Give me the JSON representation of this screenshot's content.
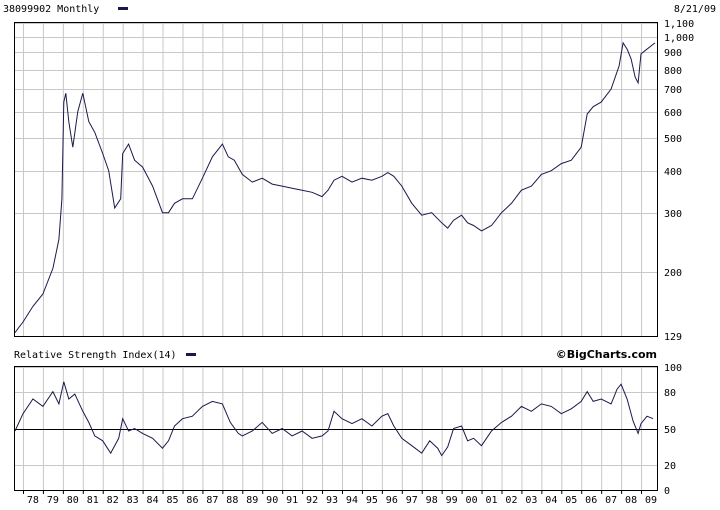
{
  "header": {
    "symbol_label": "38099902 Monthly",
    "date": "8/21/09"
  },
  "rsi_header": {
    "label": "Relative Strength Index(14)",
    "brand": "©BigCharts.com"
  },
  "colors": {
    "background": "#ffffff",
    "grid": "#c8c8c8",
    "series": "#1a1a4a",
    "frame": "#000000"
  },
  "chart_data": [
    {
      "type": "line",
      "title": "38099902 Monthly",
      "scale": "log",
      "ylim": [
        129,
        1100
      ],
      "y_ticks": [
        1100,
        1000,
        900,
        800,
        700,
        600,
        500,
        400,
        300,
        200,
        129
      ],
      "y_tick_labels": [
        "1,100",
        "1,000",
        "900",
        "800",
        "700",
        "600",
        "500",
        "400",
        "300",
        "200",
        "129"
      ],
      "xlim": [
        1977.6,
        2009.8
      ],
      "grid": true,
      "series": [
        {
          "values": [
            [
              1977.6,
              132
            ],
            [
              1978.0,
              142
            ],
            [
              1978.5,
              158
            ],
            [
              1979.0,
              172
            ],
            [
              1979.5,
              205
            ],
            [
              1979.8,
              250
            ],
            [
              1979.95,
              330
            ],
            [
              1980.05,
              640
            ],
            [
              1980.15,
              680
            ],
            [
              1980.3,
              560
            ],
            [
              1980.5,
              470
            ],
            [
              1980.75,
              600
            ],
            [
              1981.0,
              680
            ],
            [
              1981.3,
              560
            ],
            [
              1981.6,
              520
            ],
            [
              1982.0,
              450
            ],
            [
              1982.3,
              400
            ],
            [
              1982.6,
              310
            ],
            [
              1982.9,
              330
            ],
            [
              1983.0,
              450
            ],
            [
              1983.3,
              480
            ],
            [
              1983.6,
              430
            ],
            [
              1984.0,
              410
            ],
            [
              1984.5,
              360
            ],
            [
              1985.0,
              300
            ],
            [
              1985.3,
              300
            ],
            [
              1985.6,
              320
            ],
            [
              1986.0,
              330
            ],
            [
              1986.5,
              330
            ],
            [
              1987.0,
              380
            ],
            [
              1987.5,
              440
            ],
            [
              1988.0,
              480
            ],
            [
              1988.3,
              440
            ],
            [
              1988.6,
              430
            ],
            [
              1989.0,
              390
            ],
            [
              1989.5,
              370
            ],
            [
              1990.0,
              380
            ],
            [
              1990.5,
              365
            ],
            [
              1991.0,
              360
            ],
            [
              1991.5,
              355
            ],
            [
              1992.0,
              350
            ],
            [
              1992.5,
              345
            ],
            [
              1993.0,
              335
            ],
            [
              1993.3,
              350
            ],
            [
              1993.6,
              375
            ],
            [
              1994.0,
              385
            ],
            [
              1994.5,
              370
            ],
            [
              1995.0,
              380
            ],
            [
              1995.5,
              375
            ],
            [
              1996.0,
              385
            ],
            [
              1996.3,
              395
            ],
            [
              1996.6,
              385
            ],
            [
              1997.0,
              360
            ],
            [
              1997.5,
              320
            ],
            [
              1998.0,
              295
            ],
            [
              1998.5,
              300
            ],
            [
              1999.0,
              280
            ],
            [
              1999.3,
              270
            ],
            [
              1999.6,
              285
            ],
            [
              2000.0,
              295
            ],
            [
              2000.3,
              280
            ],
            [
              2000.6,
              275
            ],
            [
              2001.0,
              265
            ],
            [
              2001.5,
              275
            ],
            [
              2002.0,
              300
            ],
            [
              2002.5,
              320
            ],
            [
              2003.0,
              350
            ],
            [
              2003.5,
              360
            ],
            [
              2004.0,
              390
            ],
            [
              2004.5,
              400
            ],
            [
              2005.0,
              420
            ],
            [
              2005.5,
              430
            ],
            [
              2006.0,
              470
            ],
            [
              2006.3,
              590
            ],
            [
              2006.6,
              620
            ],
            [
              2007.0,
              640
            ],
            [
              2007.5,
              700
            ],
            [
              2007.9,
              820
            ],
            [
              2008.1,
              960
            ],
            [
              2008.3,
              920
            ],
            [
              2008.5,
              860
            ],
            [
              2008.7,
              760
            ],
            [
              2008.85,
              730
            ],
            [
              2009.0,
              890
            ],
            [
              2009.2,
              910
            ],
            [
              2009.5,
              940
            ],
            [
              2009.7,
              960
            ]
          ]
        }
      ]
    },
    {
      "type": "line",
      "title": "Relative Strength Index(14)",
      "ylim": [
        0,
        100
      ],
      "y_ticks": [
        100,
        80,
        50,
        20,
        0
      ],
      "y_tick_labels": [
        "100",
        "80",
        "50",
        "20",
        "0"
      ],
      "reference_line": 50,
      "x_tick_labels": [
        "78",
        "79",
        "80",
        "81",
        "82",
        "83",
        "84",
        "85",
        "86",
        "87",
        "88",
        "89",
        "90",
        "91",
        "92",
        "93",
        "94",
        "95",
        "96",
        "97",
        "98",
        "99",
        "00",
        "01",
        "02",
        "03",
        "04",
        "05",
        "06",
        "07",
        "08",
        "09"
      ],
      "grid": true,
      "series": [
        {
          "values": [
            [
              1977.6,
              48
            ],
            [
              1978.0,
              62
            ],
            [
              1978.5,
              74
            ],
            [
              1979.0,
              68
            ],
            [
              1979.5,
              80
            ],
            [
              1979.8,
              70
            ],
            [
              1980.05,
              88
            ],
            [
              1980.3,
              74
            ],
            [
              1980.6,
              78
            ],
            [
              1981.0,
              64
            ],
            [
              1981.3,
              55
            ],
            [
              1981.6,
              44
            ],
            [
              1982.0,
              40
            ],
            [
              1982.4,
              30
            ],
            [
              1982.8,
              42
            ],
            [
              1983.0,
              58
            ],
            [
              1983.3,
              48
            ],
            [
              1983.6,
              50
            ],
            [
              1984.0,
              46
            ],
            [
              1984.5,
              42
            ],
            [
              1985.0,
              34
            ],
            [
              1985.3,
              40
            ],
            [
              1985.6,
              52
            ],
            [
              1986.0,
              58
            ],
            [
              1986.5,
              60
            ],
            [
              1987.0,
              68
            ],
            [
              1987.5,
              72
            ],
            [
              1988.0,
              70
            ],
            [
              1988.4,
              55
            ],
            [
              1988.8,
              46
            ],
            [
              1989.0,
              44
            ],
            [
              1989.5,
              48
            ],
            [
              1990.0,
              55
            ],
            [
              1990.5,
              46
            ],
            [
              1991.0,
              50
            ],
            [
              1991.5,
              44
            ],
            [
              1992.0,
              48
            ],
            [
              1992.5,
              42
            ],
            [
              1993.0,
              44
            ],
            [
              1993.3,
              48
            ],
            [
              1993.6,
              64
            ],
            [
              1994.0,
              58
            ],
            [
              1994.5,
              54
            ],
            [
              1995.0,
              58
            ],
            [
              1995.5,
              52
            ],
            [
              1996.0,
              60
            ],
            [
              1996.3,
              62
            ],
            [
              1996.6,
              52
            ],
            [
              1997.0,
              42
            ],
            [
              1997.5,
              36
            ],
            [
              1998.0,
              30
            ],
            [
              1998.4,
              40
            ],
            [
              1998.8,
              34
            ],
            [
              1999.0,
              28
            ],
            [
              1999.3,
              35
            ],
            [
              1999.6,
              50
            ],
            [
              2000.0,
              52
            ],
            [
              2000.3,
              40
            ],
            [
              2000.6,
              42
            ],
            [
              2001.0,
              36
            ],
            [
              2001.5,
              48
            ],
            [
              2002.0,
              55
            ],
            [
              2002.5,
              60
            ],
            [
              2003.0,
              68
            ],
            [
              2003.5,
              64
            ],
            [
              2004.0,
              70
            ],
            [
              2004.5,
              68
            ],
            [
              2005.0,
              62
            ],
            [
              2005.5,
              66
            ],
            [
              2006.0,
              72
            ],
            [
              2006.3,
              80
            ],
            [
              2006.6,
              72
            ],
            [
              2007.0,
              74
            ],
            [
              2007.5,
              70
            ],
            [
              2007.8,
              82
            ],
            [
              2008.0,
              86
            ],
            [
              2008.3,
              74
            ],
            [
              2008.6,
              56
            ],
            [
              2008.85,
              46
            ],
            [
              2009.0,
              54
            ],
            [
              2009.3,
              60
            ],
            [
              2009.6,
              58
            ]
          ]
        }
      ]
    }
  ]
}
